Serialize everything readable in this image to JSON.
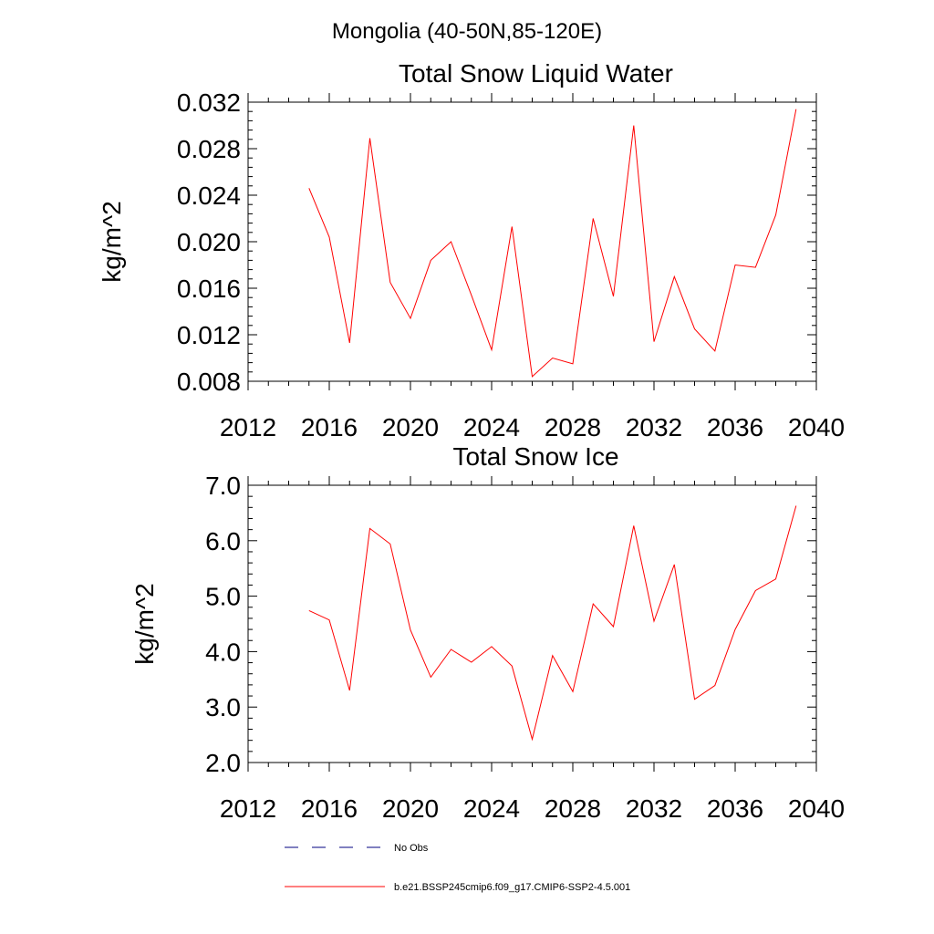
{
  "suptitle": "Mongolia (40-50N,85-120E)",
  "legend": {
    "items": [
      {
        "label": "No Obs",
        "color": "#000080",
        "dash": "dashed"
      },
      {
        "label": "b.e21.BSSP245cmip6.f09_g17.CMIP6-SSP2-4.5.001",
        "color": "#ff0000",
        "dash": "solid"
      }
    ]
  },
  "chart_data": [
    {
      "type": "line",
      "title": "Total Snow Liquid Water",
      "ylabel": "kg/m^2",
      "xlabel": "",
      "xlim": [
        2012,
        2040
      ],
      "ylim": [
        0.008,
        0.032
      ],
      "xticks": [
        2012,
        2016,
        2020,
        2024,
        2028,
        2032,
        2036,
        2040
      ],
      "xtick_labels": [
        "2012",
        "2016",
        "2020",
        "2024",
        "2028",
        "2032",
        "2036",
        "2040"
      ],
      "yticks": [
        0.008,
        0.012,
        0.016,
        0.02,
        0.024,
        0.028,
        0.032
      ],
      "ytick_labels": [
        "0.008",
        "0.012",
        "0.016",
        "0.020",
        "0.024",
        "0.028",
        "0.032"
      ],
      "grid": false,
      "series": [
        {
          "color": "#ff0000",
          "x": [
            2015,
            2016,
            2017,
            2018,
            2019,
            2020,
            2021,
            2022,
            2023,
            2024,
            2025,
            2026,
            2027,
            2028,
            2029,
            2030,
            2031,
            2032,
            2033,
            2034,
            2035,
            2036,
            2037,
            2038,
            2039
          ],
          "y": [
            0.0246,
            0.0204,
            0.0113,
            0.0289,
            0.0165,
            0.0134,
            0.0184,
            0.02,
            0.0154,
            0.0107,
            0.0213,
            0.0084,
            0.01,
            0.0095,
            0.022,
            0.0153,
            0.03,
            0.0114,
            0.017,
            0.0125,
            0.0106,
            0.018,
            0.0178,
            0.0223,
            0.0314
          ]
        }
      ]
    },
    {
      "type": "line",
      "title": "Total Snow Ice",
      "ylabel": "kg/m^2",
      "xlabel": "",
      "xlim": [
        2012,
        2040
      ],
      "ylim": [
        2.0,
        7.0
      ],
      "xticks": [
        2012,
        2016,
        2020,
        2024,
        2028,
        2032,
        2036,
        2040
      ],
      "xtick_labels": [
        "2012",
        "2016",
        "2020",
        "2024",
        "2028",
        "2032",
        "2036",
        "2040"
      ],
      "yticks": [
        2.0,
        3.0,
        4.0,
        5.0,
        6.0,
        7.0
      ],
      "ytick_labels": [
        "2.0",
        "3.0",
        "4.0",
        "5.0",
        "6.0",
        "7.0"
      ],
      "grid": false,
      "series": [
        {
          "color": "#ff0000",
          "x": [
            2015,
            2016,
            2017,
            2018,
            2019,
            2020,
            2021,
            2022,
            2023,
            2024,
            2025,
            2026,
            2027,
            2028,
            2029,
            2030,
            2031,
            2032,
            2033,
            2034,
            2035,
            2036,
            2037,
            2038,
            2039
          ],
          "y": [
            4.74,
            4.57,
            3.3,
            6.22,
            5.94,
            4.39,
            3.54,
            4.04,
            3.81,
            4.09,
            3.74,
            2.42,
            3.93,
            3.28,
            4.86,
            4.45,
            6.27,
            4.55,
            5.57,
            3.14,
            3.39,
            4.4,
            5.1,
            5.31,
            6.63
          ]
        }
      ]
    }
  ]
}
